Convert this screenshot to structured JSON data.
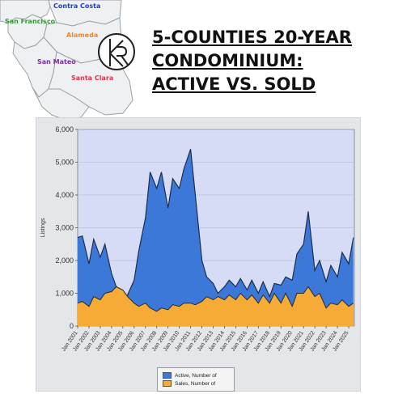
{
  "map": {
    "counties": [
      {
        "name": "Contra Costa",
        "color": "#1f3fbf"
      },
      {
        "name": "San Francisco",
        "color": "#2e9e2e"
      },
      {
        "name": "Alameda",
        "color": "#f08a24"
      },
      {
        "name": "San Mateo",
        "color": "#7a2fa8"
      },
      {
        "name": "Santa Clara",
        "color": "#e8334a"
      }
    ]
  },
  "logo": {
    "icon": "kr-monogram-icon",
    "text": "KR"
  },
  "title": {
    "line1": "5-COUNTIES 20-YEAR",
    "line2": "CONDOMINIUM:",
    "line3": "ACTIVE VS. SOLD"
  },
  "colors": {
    "active": "#3c78d8",
    "sold": "#f5ab35",
    "plot_bg": "#d6dcf6"
  },
  "chart_data": {
    "type": "area",
    "ylabel": "Listings",
    "xlabel": "",
    "ylim": [
      0,
      6000
    ],
    "yticks": [
      "0",
      "1,000",
      "2,000",
      "3,000",
      "4,000",
      "5,000",
      "6,000"
    ],
    "xtick_labels": [
      "Jan 2001",
      "Jan 2002",
      "Jan 2003",
      "Jan 2004",
      "Jan 2005",
      "Jan 2006",
      "Jan 2007",
      "Jan 2008",
      "Jan 2009",
      "Jan 2010",
      "Jan 2011",
      "Jan 2012",
      "Jan 2013",
      "Jan 2014",
      "Jan 2015",
      "Jan 2016",
      "Jan 2017",
      "Jan 2018",
      "Jan 2019",
      "Jan 2020",
      "Jan 2021",
      "Jan 2022",
      "Jan 2023",
      "Jan 2024",
      "Jan 2025"
    ],
    "x": [
      "2001-01",
      "2001-06",
      "2002-01",
      "2002-06",
      "2003-01",
      "2003-06",
      "2004-01",
      "2004-06",
      "2005-01",
      "2005-06",
      "2006-01",
      "2006-06",
      "2007-01",
      "2007-06",
      "2008-01",
      "2008-06",
      "2009-01",
      "2009-06",
      "2010-01",
      "2010-06",
      "2011-01",
      "2011-06",
      "2012-01",
      "2012-06",
      "2013-01",
      "2013-06",
      "2014-01",
      "2014-06",
      "2015-01",
      "2015-06",
      "2016-01",
      "2016-06",
      "2017-01",
      "2017-06",
      "2018-01",
      "2018-06",
      "2019-01",
      "2019-06",
      "2020-01",
      "2020-06",
      "2021-01",
      "2021-06",
      "2022-01",
      "2022-06",
      "2023-01",
      "2023-06",
      "2024-01",
      "2024-06",
      "2025-01",
      "2025-06"
    ],
    "grid": true,
    "legend_position": "bottom",
    "series": [
      {
        "name": "Active, Number of",
        "values": [
          2700,
          2750,
          1900,
          2650,
          2100,
          2500,
          1600,
          1200,
          800,
          950,
          1400,
          2300,
          3300,
          4700,
          4200,
          4700,
          3600,
          4500,
          4200,
          4800,
          5400,
          4000,
          2000,
          1500,
          1300,
          1000,
          1200,
          1400,
          1200,
          1450,
          1100,
          1400,
          1000,
          1350,
          900,
          1300,
          1250,
          1500,
          1400,
          2200,
          2500,
          3500,
          1700,
          2000,
          1350,
          1850,
          1500,
          2250,
          1900,
          2700
        ]
      },
      {
        "name": "Sales, Number of",
        "values": [
          700,
          750,
          600,
          900,
          800,
          1000,
          1050,
          1200,
          1100,
          900,
          700,
          600,
          700,
          550,
          450,
          550,
          500,
          650,
          600,
          700,
          700,
          650,
          750,
          900,
          800,
          900,
          800,
          950,
          800,
          1000,
          800,
          950,
          700,
          950,
          700,
          1000,
          700,
          1000,
          600,
          1000,
          1000,
          1200,
          900,
          1000,
          550,
          700,
          650,
          800,
          600,
          700
        ]
      }
    ]
  }
}
